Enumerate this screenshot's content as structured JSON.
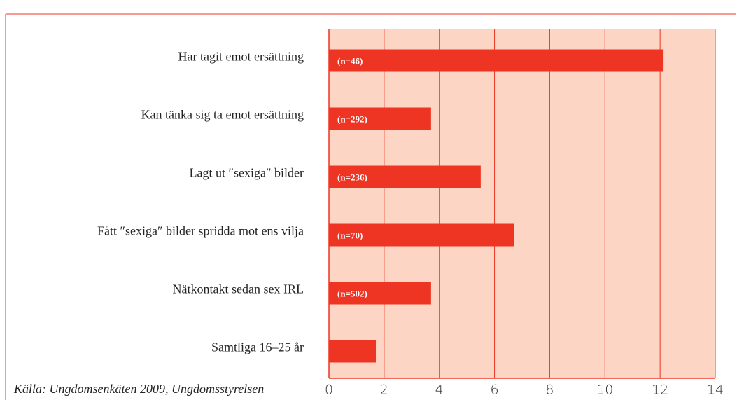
{
  "chart_data": {
    "type": "bar",
    "orientation": "horizontal",
    "categories": [
      "Har tagit emot ersättning",
      "Kan tänka sig ta emot ersättning",
      "Lagt ut ″sexiga″ bilder",
      "Fått ″sexiga″ bilder spridda mot ens vilja",
      "Nätkontakt sedan sex IRL",
      "Samtliga 16–25 år"
    ],
    "values": [
      12.1,
      3.7,
      5.5,
      6.7,
      3.7,
      1.7
    ],
    "annotations": [
      "(n=46)",
      "(n=292)",
      "(n=236)",
      "(n=70)",
      "(n=502)",
      null
    ],
    "color": "#ee3524",
    "background": "#fdd5c4",
    "xlim": [
      0,
      14
    ],
    "xticks": [
      0,
      2,
      4,
      6,
      8,
      10,
      12,
      14
    ],
    "grid": true,
    "source": "Källa: Ungdomsenkäten 2009, Ungdomsstyrelsen"
  }
}
